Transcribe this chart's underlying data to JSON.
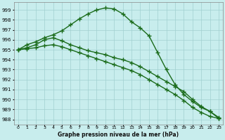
{
  "xlabel": "Graphe pression niveau de la mer (hPa)",
  "x_ticks": [
    0,
    1,
    2,
    3,
    4,
    5,
    6,
    7,
    8,
    9,
    10,
    11,
    12,
    13,
    14,
    15,
    16,
    17,
    18,
    19,
    20,
    21,
    22,
    23
  ],
  "ylim": [
    987.5,
    999.8
  ],
  "yticks": [
    988,
    989,
    990,
    991,
    992,
    993,
    994,
    995,
    996,
    997,
    998,
    999
  ],
  "background_color": "#c8eded",
  "grid_color": "#a0d0d0",
  "line_color": "#1a6b1a",
  "lines": [
    {
      "x": [
        0,
        1,
        2,
        3,
        4,
        5,
        6,
        7,
        8,
        9,
        10,
        11,
        12,
        13,
        14,
        15,
        16,
        17,
        18,
        19,
        20,
        21,
        22,
        23
      ],
      "y": [
        995.0,
        995.5,
        995.8,
        996.2,
        996.5,
        996.9,
        997.5,
        998.1,
        998.6,
        999.0,
        999.2,
        999.1,
        998.6,
        997.8,
        997.2,
        996.4,
        994.7,
        993.0,
        991.5,
        990.5,
        989.8,
        989.2,
        988.8,
        988.1
      ],
      "marker": "+",
      "markersize": 4,
      "linewidth": 1.0
    },
    {
      "x": [
        0,
        1,
        2,
        3,
        4,
        5,
        6,
        7,
        8,
        9,
        10,
        11,
        12,
        13,
        14,
        15,
        16,
        17,
        18,
        19,
        20,
        21,
        22,
        23
      ],
      "y": [
        995.0,
        995.2,
        995.5,
        996.0,
        996.2,
        995.9,
        995.5,
        995.2,
        994.9,
        994.7,
        994.5,
        994.2,
        994.0,
        993.7,
        993.3,
        992.8,
        992.3,
        991.8,
        991.3,
        990.8,
        990.0,
        989.3,
        988.8,
        988.2
      ],
      "marker": "+",
      "markersize": 4,
      "linewidth": 1.0
    },
    {
      "x": [
        0,
        1,
        2,
        3,
        4,
        5,
        6,
        7,
        8,
        9,
        10,
        11,
        12,
        13,
        14,
        15,
        16,
        17,
        18,
        19,
        20,
        21,
        22,
        23
      ],
      "y": [
        995.0,
        995.1,
        995.2,
        995.4,
        995.5,
        995.3,
        995.0,
        994.7,
        994.4,
        994.1,
        993.8,
        993.5,
        993.2,
        992.9,
        992.5,
        992.0,
        991.5,
        991.0,
        990.5,
        989.9,
        989.2,
        988.7,
        988.3,
        988.1
      ],
      "marker": "+",
      "markersize": 4,
      "linewidth": 1.0
    }
  ]
}
